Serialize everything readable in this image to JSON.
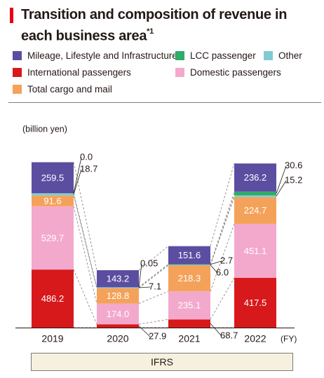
{
  "title": "Transition and composition of revenue in each business area",
  "title_note": "*1",
  "legend": [
    {
      "key": "mileage",
      "label": "Mileage, Lifestyle and Infrastructure",
      "color": "#5b4ea1"
    },
    {
      "key": "lcc",
      "label": "LCC passenger",
      "color": "#2fac66"
    },
    {
      "key": "other",
      "label": "Other",
      "color": "#80cbd3"
    },
    {
      "key": "intl",
      "label": "International passengers",
      "color": "#d7191c"
    },
    {
      "key": "dom",
      "label": "Domestic passengers",
      "color": "#f3a9cc"
    },
    {
      "key": "cargo",
      "label": "Total cargo and mail",
      "color": "#f4a25a"
    }
  ],
  "ifrs_label": "IFRS",
  "chart_data": {
    "type": "bar",
    "stacked": true,
    "unit_label": "(billion yen)",
    "x_unit": "(FY)",
    "categories": [
      "2019",
      "2020",
      "2021",
      "2022"
    ],
    "series": [
      {
        "name": "International passengers",
        "key": "intl",
        "values": [
          486.2,
          27.9,
          68.7,
          417.5
        ],
        "labels": [
          "486.2",
          "27.9",
          "68.7",
          "417.5"
        ]
      },
      {
        "name": "Domestic passengers",
        "key": "dom",
        "values": [
          529.7,
          174.0,
          235.1,
          451.1
        ],
        "labels": [
          "529.7",
          "174.0",
          "235.1",
          "451.1"
        ]
      },
      {
        "name": "Total cargo and mail",
        "key": "cargo",
        "values": [
          91.6,
          128.8,
          218.3,
          224.7
        ],
        "labels": [
          "91.6",
          "128.8",
          "218.3",
          "224.7"
        ]
      },
      {
        "name": "Other",
        "key": "other",
        "values": [
          18.7,
          7.1,
          6.0,
          15.2
        ],
        "labels": [
          "18.7",
          "7.1",
          "6.0",
          "15.2"
        ]
      },
      {
        "name": "LCC passenger",
        "key": "lcc",
        "values": [
          0.0,
          0.05,
          2.7,
          30.6
        ],
        "labels": [
          "0.0",
          "0.05",
          "2.7",
          "30.6"
        ]
      },
      {
        "name": "Mileage, Lifestyle and Infrastructure",
        "key": "mileage",
        "values": [
          259.5,
          143.2,
          151.6,
          236.2
        ],
        "labels": [
          "259.5",
          "143.2",
          "151.6",
          "236.2"
        ]
      }
    ]
  }
}
